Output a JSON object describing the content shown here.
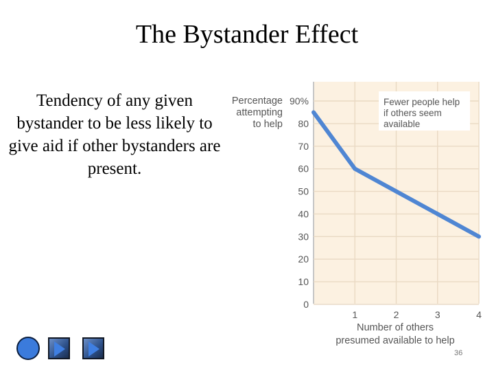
{
  "slide": {
    "title": "The Bystander Effect",
    "body": "Tendency of any given bystander to be less likely to give aid if other bystanders are present.",
    "page_number": "36"
  },
  "nav": {
    "home_icon": "circle-icon",
    "back_icon": "triangle-right-icon",
    "forward_icon": "triangle-right-icon"
  },
  "colors": {
    "line": "#4f86d3",
    "plot_bg": "#fcf1e1",
    "grid": "#e9d9c3",
    "axis": "#c6c6c6"
  },
  "chart_data": {
    "type": "line",
    "title": "",
    "ylabel": [
      "Percentage",
      "attempting",
      "to help"
    ],
    "xlabel": [
      "Number of others",
      "presumed available to help"
    ],
    "annotation": [
      "Fewer people help",
      "if others seem",
      "available"
    ],
    "x": [
      0,
      1,
      2,
      3,
      4
    ],
    "y": [
      85,
      60,
      50,
      40,
      30
    ],
    "xlim": [
      0,
      4
    ],
    "ylim": [
      0,
      100
    ],
    "x_ticks": [
      1,
      2,
      3,
      4
    ],
    "x_tick_labels": [
      "1",
      "2",
      "3",
      "4"
    ],
    "y_ticks": [
      0,
      10,
      20,
      30,
      40,
      50,
      60,
      70,
      80,
      90
    ],
    "y_tick_labels": [
      "0",
      "10",
      "20",
      "30",
      "40",
      "50",
      "60",
      "70",
      "80",
      "90%"
    ],
    "grid": true,
    "legend": "none"
  }
}
